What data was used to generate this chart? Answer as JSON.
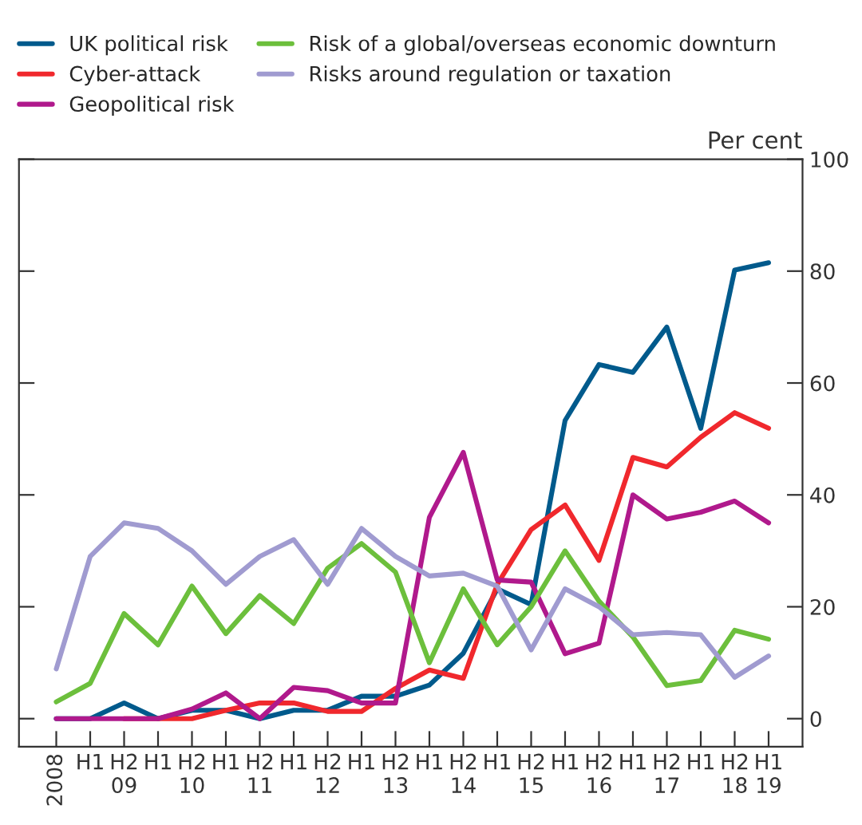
{
  "chart_data": {
    "type": "line",
    "categories": [
      "2008",
      "H1",
      "H2\n09",
      "H1",
      "H2\n10",
      "H1",
      "H2\n11",
      "H1",
      "H2\n12",
      "H1",
      "H2\n13",
      "H1",
      "H2\n14",
      "H1",
      "H2\n15",
      "H1",
      "H2\n16",
      "H1",
      "H2\n17",
      "H1",
      "H2\n18",
      "H1\n19"
    ],
    "series": [
      {
        "name": "UK political risk",
        "color": "#005a8c",
        "values": [
          0,
          0,
          2.8,
          0,
          1.5,
          1.5,
          0,
          1.5,
          1.5,
          4,
          4,
          6,
          11.7,
          23.2,
          20.4,
          53.3,
          63.3,
          61.9,
          70,
          51.9,
          80.2,
          81.5
        ]
      },
      {
        "name": "Cyber-attack",
        "color": "#f0282d",
        "values": [
          null,
          null,
          0,
          0,
          0,
          1.5,
          2.8,
          2.8,
          1.3,
          1.3,
          5.4,
          8.7,
          7.2,
          24,
          33.8,
          38.2,
          28.3,
          46.7,
          45,
          50.3,
          54.7,
          51.9
        ]
      },
      {
        "name": "Geopolitical risk",
        "color": "#b0198c",
        "values": [
          0,
          0,
          0,
          0,
          1.7,
          4.6,
          0,
          5.6,
          5,
          2.8,
          2.8,
          36,
          47.6,
          24.8,
          24.4,
          11.6,
          13.5,
          40,
          35.7,
          36.9,
          38.9,
          35
        ]
      },
      {
        "name": "Risk of a global/overseas economic downturn",
        "color": "#6cbf3c",
        "values": [
          3,
          6.3,
          18.8,
          13.2,
          23.7,
          15.2,
          22,
          17,
          26.9,
          31.3,
          26.2,
          10,
          23.2,
          13.2,
          20,
          30,
          21,
          14.6,
          5.9,
          6.8,
          15.8,
          14.2
        ]
      },
      {
        "name": "Risks around regulation or taxation",
        "color": "#a09bd0",
        "values": [
          8.9,
          29,
          35,
          34,
          30,
          24,
          29,
          32,
          24,
          34,
          29,
          25.5,
          26,
          23.7,
          12.3,
          23.2,
          20,
          15,
          15.4,
          15,
          7.4,
          11.2
        ]
      }
    ],
    "ylabel": "Per cent",
    "ylim": [
      -5,
      100
    ],
    "yticks": [
      0,
      20,
      40,
      60,
      80,
      100
    ],
    "grid": false,
    "legend": "top",
    "marker": "none",
    "line_style": "solid"
  }
}
